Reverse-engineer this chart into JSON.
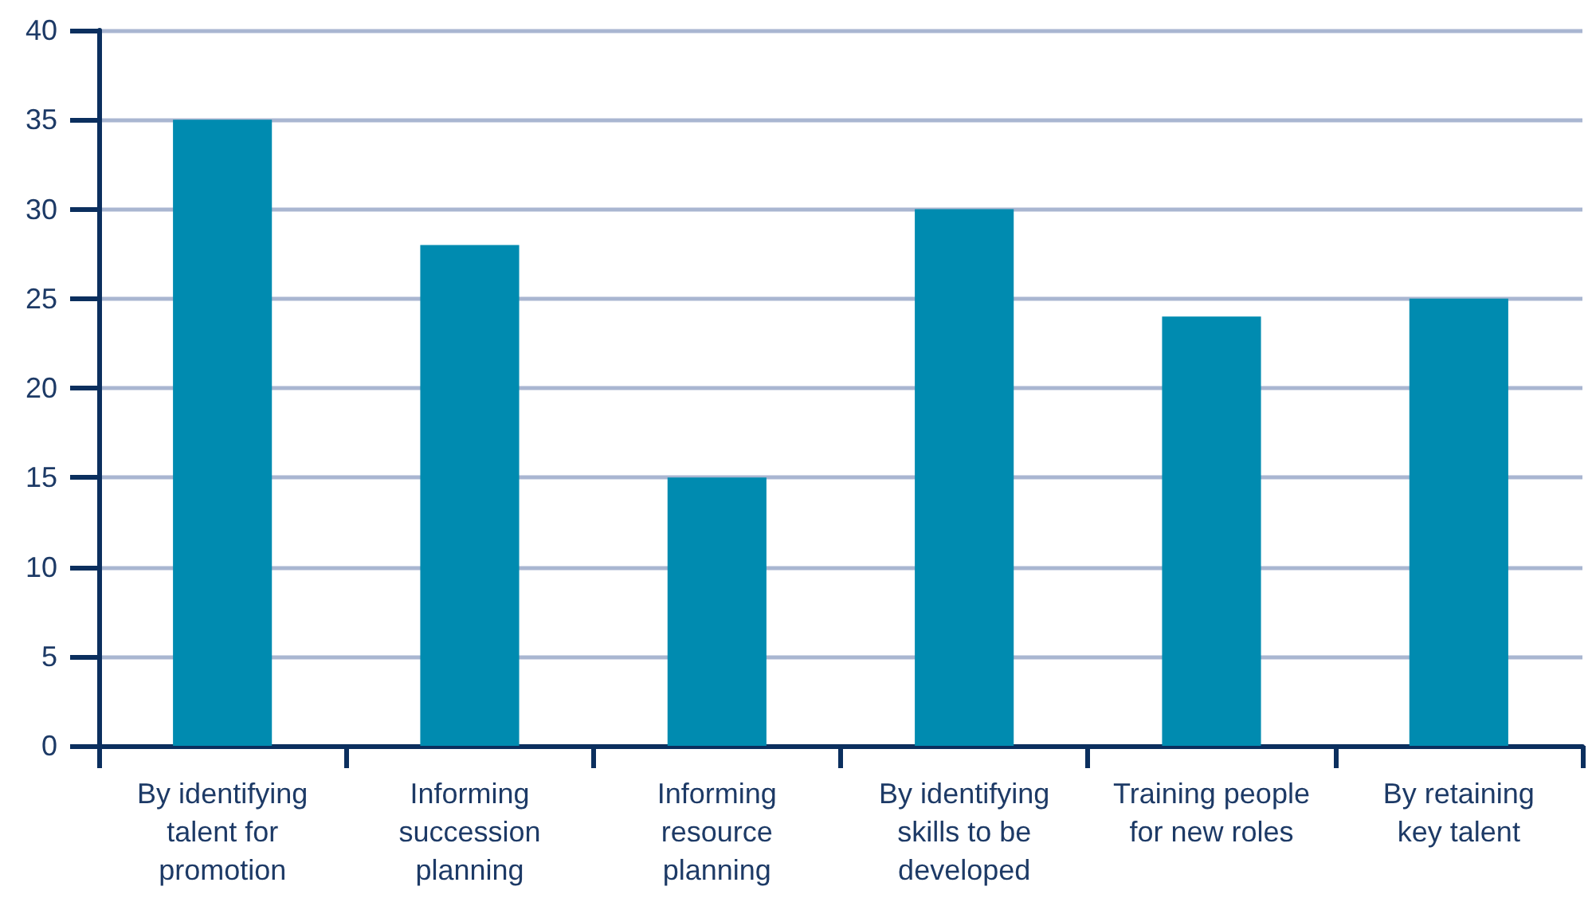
{
  "chart_data": {
    "type": "bar",
    "categories": [
      "By identifying\ntalent for\npromotion",
      "Informing\nsuccession\nplanning",
      "Informing\nresource\nplanning",
      "By identifying\nskills to be\ndeveloped",
      "Training people\nfor new roles",
      "By retaining\nkey talent"
    ],
    "values": [
      35,
      28,
      15,
      30,
      24,
      25
    ],
    "color": "#008bb0",
    "ylim": [
      0,
      40
    ],
    "yticks": [
      0,
      5,
      10,
      15,
      20,
      25,
      30,
      35,
      40
    ],
    "grid": "y"
  }
}
